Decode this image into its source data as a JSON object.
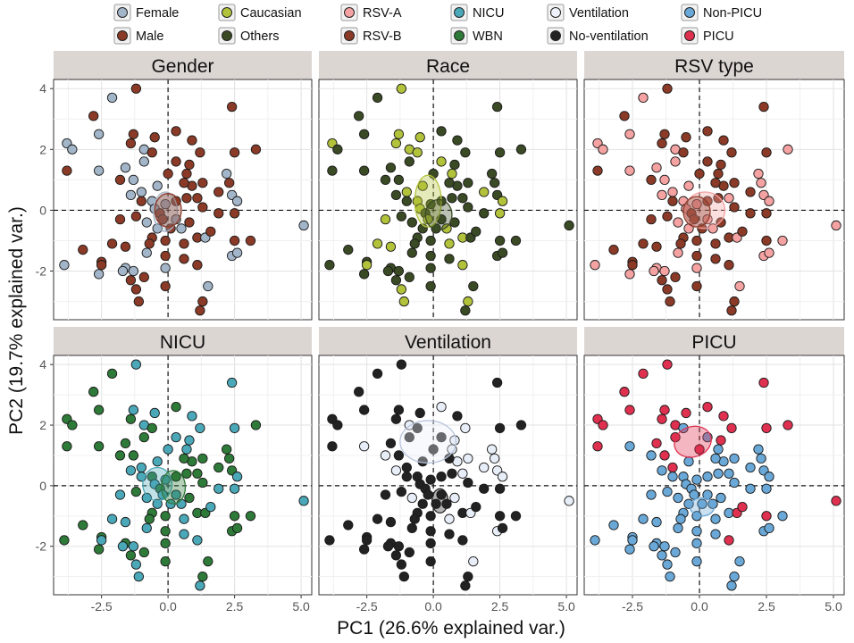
{
  "chart_data": {
    "type": "scatter",
    "xlabel": "PC1 (26.6% explained var.)",
    "ylabel": "PC2 (19.7% explained var.)",
    "xlim": [
      -4.3,
      5.4
    ],
    "ylim": [
      -3.6,
      4.3
    ],
    "x_ticks": [
      -2.5,
      0.0,
      2.5,
      5.0
    ],
    "x_tick_labels": [
      "-2.5",
      "0.0",
      "2.5",
      "5.0"
    ],
    "y_ticks": [
      -2,
      0,
      2,
      4
    ],
    "y_tick_labels": [
      "-2",
      "0",
      "2",
      "4"
    ],
    "grid": true,
    "reference_lines": {
      "x": 0,
      "y": 0,
      "style": "dashed"
    },
    "legend_position": "top",
    "legend": [
      {
        "label": "Female",
        "color": "#a3b5c8"
      },
      {
        "label": "Male",
        "color": "#8a3a26"
      },
      {
        "label": "Caucasian",
        "color": "#b2c23a"
      },
      {
        "label": "Others",
        "color": "#3a4a24"
      },
      {
        "label": "RSV-A",
        "color": "#f4a2a2"
      },
      {
        "label": "RSV-B",
        "color": "#8a3a26"
      },
      {
        "label": "NICU",
        "color": "#4aa8b8"
      },
      {
        "label": "WBN",
        "color": "#2e7a38"
      },
      {
        "label": "Ventilation",
        "color": "#eef2fa"
      },
      {
        "label": "No-ventilation",
        "color": "#222222"
      },
      {
        "label": "Non-PICU",
        "color": "#6aa8d8"
      },
      {
        "label": "PICU",
        "color": "#e03050"
      }
    ],
    "panels": [
      {
        "title": "Gender",
        "groups": [
          {
            "name": "Female",
            "color": "#a3b5c8",
            "ellipse": {
              "cx": -0.1,
              "cy": -0.05,
              "rx": 0.45,
              "ry": 0.65,
              "angle": 0
            }
          },
          {
            "name": "Male",
            "color": "#8a3a26",
            "ellipse": {
              "cx": 0.0,
              "cy": 0.0,
              "rx": 0.5,
              "ry": 0.55,
              "angle": 0
            }
          }
        ]
      },
      {
        "title": "Race",
        "groups": [
          {
            "name": "Caucasian",
            "color": "#b2c23a",
            "ellipse": {
              "cx": -0.2,
              "cy": 0.3,
              "rx": 0.5,
              "ry": 0.85,
              "angle": 0
            }
          },
          {
            "name": "Others",
            "color": "#3a4a24",
            "ellipse": {
              "cx": 0.2,
              "cy": -0.15,
              "rx": 0.5,
              "ry": 0.5,
              "angle": 0
            }
          }
        ]
      },
      {
        "title": "RSV type",
        "groups": [
          {
            "name": "RSV-A",
            "color": "#f4a2a2",
            "ellipse": {
              "cx": 0.2,
              "cy": 0.0,
              "rx": 0.75,
              "ry": 0.6,
              "angle": 0
            }
          },
          {
            "name": "RSV-B",
            "color": "#8a3a26",
            "ellipse": {
              "cx": -0.1,
              "cy": -0.05,
              "rx": 0.5,
              "ry": 0.5,
              "angle": 0
            }
          }
        ]
      },
      {
        "title": "NICU",
        "groups": [
          {
            "name": "NICU",
            "color": "#4aa8b8",
            "ellipse": {
              "cx": -0.4,
              "cy": 0.05,
              "rx": 0.55,
              "ry": 0.55,
              "angle": 0
            }
          },
          {
            "name": "WBN",
            "color": "#2e7a38",
            "ellipse": {
              "cx": 0.2,
              "cy": -0.05,
              "rx": 0.45,
              "ry": 0.55,
              "angle": 0
            }
          }
        ]
      },
      {
        "title": "Ventilation",
        "groups": [
          {
            "name": "Ventilation",
            "color": "#e8eef8",
            "ellipse": {
              "cx": -0.2,
              "cy": 1.45,
              "rx": 1.05,
              "ry": 0.7,
              "angle": 0
            }
          },
          {
            "name": "No-ventilation",
            "color": "#222222",
            "ellipse": {
              "cx": 0.25,
              "cy": -0.5,
              "rx": 0.3,
              "ry": 0.4,
              "angle": 0
            }
          }
        ]
      },
      {
        "title": "PICU",
        "groups": [
          {
            "name": "PICU",
            "color": "#e03050",
            "ellipse": {
              "cx": -0.25,
              "cy": 1.45,
              "rx": 0.7,
              "ry": 0.5,
              "angle": -18
            }
          },
          {
            "name": "Non-PICU",
            "color": "#6aa8d8",
            "ellipse": {
              "cx": 0.1,
              "cy": -0.7,
              "rx": 0.45,
              "ry": 0.3,
              "angle": 0
            }
          }
        ]
      }
    ],
    "points": [
      [
        -1.2,
        4.0,
        1,
        0,
        1,
        0,
        1,
        1
      ],
      [
        -2.1,
        3.7,
        0,
        1,
        0,
        1,
        1,
        1
      ],
      [
        -2.8,
        3.1,
        1,
        1,
        1,
        1,
        1,
        1
      ],
      [
        -2.6,
        2.5,
        0,
        1,
        0,
        1,
        1,
        1
      ],
      [
        -1.3,
        2.5,
        1,
        0,
        1,
        0,
        1,
        1
      ],
      [
        -1.4,
        2.2,
        1,
        0,
        1,
        1,
        1,
        1
      ],
      [
        -0.5,
        2.4,
        1,
        0,
        1,
        0,
        1,
        1
      ],
      [
        -3.8,
        2.2,
        0,
        0,
        0,
        1,
        1,
        1
      ],
      [
        -3.6,
        2.0,
        0,
        1,
        0,
        1,
        1,
        1
      ],
      [
        -3.8,
        1.3,
        1,
        1,
        1,
        1,
        1,
        1
      ],
      [
        -2.6,
        1.3,
        0,
        1,
        0,
        1,
        0,
        0
      ],
      [
        0.3,
        2.6,
        1,
        1,
        1,
        1,
        0,
        1
      ],
      [
        0.9,
        2.3,
        1,
        1,
        1,
        0,
        1,
        1
      ],
      [
        2.4,
        3.4,
        1,
        1,
        1,
        0,
        1,
        1
      ],
      [
        2.5,
        1.9,
        1,
        1,
        1,
        0,
        1,
        1
      ],
      [
        3.3,
        2.0,
        1,
        1,
        0,
        1,
        1,
        1
      ],
      [
        -0.9,
        2.0,
        0,
        0,
        0,
        0,
        0,
        1
      ],
      [
        -0.6,
        1.9,
        1,
        0,
        1,
        1,
        1,
        0
      ],
      [
        -0.9,
        1.6,
        0,
        1,
        0,
        1,
        1,
        1
      ],
      [
        0.0,
        1.2,
        1,
        1,
        1,
        0,
        1,
        1
      ],
      [
        0.3,
        1.6,
        1,
        0,
        1,
        0,
        1,
        0
      ],
      [
        0.8,
        1.5,
        1,
        1,
        1,
        0,
        0,
        1
      ],
      [
        0.7,
        1.2,
        1,
        0,
        1,
        0,
        0,
        0
      ],
      [
        1.2,
        1.9,
        1,
        1,
        1,
        0,
        0,
        1
      ],
      [
        -1.6,
        1.4,
        0,
        1,
        0,
        1,
        1,
        1
      ],
      [
        -1.8,
        1.0,
        1,
        1,
        1,
        1,
        0,
        0
      ],
      [
        -1.3,
        1.0,
        0,
        1,
        0,
        1,
        1,
        1
      ],
      [
        -1.0,
        0.6,
        0,
        0,
        0,
        0,
        1,
        1
      ],
      [
        -0.4,
        0.8,
        0,
        0,
        0,
        0,
        1,
        0
      ],
      [
        -1.0,
        0.3,
        1,
        1,
        1,
        0,
        1,
        0
      ],
      [
        -0.6,
        0.3,
        0,
        0,
        0,
        1,
        1,
        0
      ],
      [
        -0.5,
        0.05,
        0,
        0,
        0,
        0,
        1,
        0
      ],
      [
        -0.3,
        -0.1,
        1,
        1,
        1,
        1,
        1,
        0
      ],
      [
        -0.1,
        0.2,
        0,
        1,
        0,
        0,
        1,
        0
      ],
      [
        0.3,
        0.3,
        1,
        1,
        1,
        1,
        1,
        0
      ],
      [
        0.7,
        0.4,
        1,
        1,
        1,
        1,
        1,
        0
      ],
      [
        0.9,
        0.8,
        1,
        1,
        1,
        1,
        0,
        0
      ],
      [
        0.6,
        0.9,
        1,
        1,
        1,
        1,
        1,
        0
      ],
      [
        1.3,
        0.9,
        1,
        1,
        1,
        1,
        0,
        0
      ],
      [
        1.1,
        0.4,
        1,
        1,
        0,
        1,
        0,
        0
      ],
      [
        1.3,
        0.1,
        1,
        1,
        1,
        1,
        1,
        0
      ],
      [
        2.2,
        1.2,
        0,
        1,
        0,
        1,
        0,
        0
      ],
      [
        2.3,
        0.9,
        1,
        1,
        0,
        1,
        0,
        0
      ],
      [
        2.4,
        0.5,
        0,
        1,
        0,
        1,
        0,
        0
      ],
      [
        2.6,
        0.3,
        0,
        0,
        0,
        0,
        0,
        0
      ],
      [
        1.9,
        0.6,
        1,
        0,
        1,
        1,
        0,
        0
      ],
      [
        1.9,
        -0.1,
        1,
        1,
        1,
        0,
        1,
        0
      ],
      [
        -1.4,
        0.5,
        0,
        1,
        0,
        0,
        0,
        0
      ],
      [
        -1.8,
        -0.3,
        1,
        0,
        1,
        0,
        1,
        0
      ],
      [
        -1.2,
        -0.2,
        1,
        1,
        1,
        1,
        1,
        0
      ],
      [
        -0.8,
        -0.4,
        0,
        1,
        0,
        0,
        0,
        0
      ],
      [
        -0.4,
        -0.6,
        0,
        1,
        0,
        0,
        1,
        0
      ],
      [
        -0.2,
        -0.3,
        1,
        0,
        1,
        0,
        1,
        0
      ],
      [
        0.1,
        -0.6,
        1,
        1,
        1,
        0,
        1,
        0
      ],
      [
        0.3,
        -0.3,
        0,
        1,
        0,
        0,
        1,
        0
      ],
      [
        0.5,
        -0.6,
        0,
        0,
        0,
        0,
        1,
        0
      ],
      [
        0.8,
        -0.4,
        1,
        1,
        1,
        1,
        0,
        0
      ],
      [
        1.1,
        -0.9,
        1,
        0,
        1,
        1,
        1,
        0
      ],
      [
        1.4,
        -0.9,
        0,
        1,
        0,
        1,
        0,
        1
      ],
      [
        1.6,
        -0.7,
        1,
        1,
        1,
        0,
        1,
        1
      ],
      [
        0.6,
        -1.1,
        1,
        0,
        1,
        0,
        0,
        0
      ],
      [
        -0.1,
        -1.0,
        1,
        1,
        1,
        1,
        1,
        0
      ],
      [
        -0.6,
        -0.9,
        1,
        1,
        1,
        1,
        1,
        0
      ],
      [
        -1.6,
        -1.2,
        1,
        0,
        1,
        0,
        1,
        0
      ],
      [
        -2.1,
        -1.1,
        1,
        0,
        1,
        0,
        1,
        0
      ],
      [
        -2.5,
        -1.7,
        1,
        1,
        1,
        1,
        1,
        0
      ],
      [
        -2.5,
        -1.8,
        1,
        0,
        1,
        0,
        1,
        0
      ],
      [
        -2.6,
        -2.1,
        0,
        1,
        0,
        1,
        1,
        0
      ],
      [
        -3.2,
        -1.3,
        1,
        1,
        1,
        1,
        1,
        0
      ],
      [
        -3.9,
        -1.8,
        0,
        1,
        0,
        1,
        1,
        0
      ],
      [
        -1.6,
        -1.9,
        0,
        1,
        0,
        1,
        1,
        0
      ],
      [
        -1.7,
        -2.0,
        0,
        1,
        0,
        0,
        1,
        0
      ],
      [
        -1.3,
        -2.0,
        0,
        1,
        0,
        0,
        1,
        0
      ],
      [
        -1.4,
        -2.3,
        1,
        1,
        1,
        1,
        1,
        0
      ],
      [
        -1.2,
        -2.6,
        1,
        0,
        1,
        0,
        1,
        0
      ],
      [
        -1.1,
        -3.0,
        1,
        0,
        1,
        0,
        1,
        0
      ],
      [
        -0.9,
        -2.2,
        1,
        1,
        1,
        1,
        1,
        0
      ],
      [
        -0.1,
        -1.5,
        1,
        1,
        1,
        1,
        1,
        0
      ],
      [
        -0.1,
        -1.9,
        0,
        1,
        0,
        1,
        1,
        0
      ],
      [
        -0.1,
        -2.5,
        1,
        1,
        1,
        1,
        1,
        0
      ],
      [
        -0.8,
        -1.4,
        0,
        1,
        0,
        0,
        1,
        0
      ],
      [
        -0.7,
        -1.1,
        1,
        1,
        1,
        1,
        1,
        0
      ],
      [
        0.6,
        -1.6,
        1,
        1,
        1,
        0,
        1,
        0
      ],
      [
        1.1,
        -1.8,
        1,
        0,
        1,
        0,
        1,
        1
      ],
      [
        1.5,
        -2.5,
        0,
        1,
        0,
        1,
        0,
        0
      ],
      [
        1.3,
        -3.0,
        1,
        0,
        1,
        1,
        1,
        0
      ],
      [
        1.2,
        -3.3,
        1,
        1,
        1,
        0,
        1,
        0
      ],
      [
        2.4,
        -1.5,
        0,
        1,
        0,
        1,
        0,
        0
      ],
      [
        2.6,
        -1.4,
        0,
        1,
        0,
        1,
        1,
        0
      ],
      [
        2.5,
        -1.0,
        1,
        1,
        1,
        1,
        1,
        1
      ],
      [
        3.1,
        -1.0,
        1,
        1,
        0,
        1,
        1,
        0
      ],
      [
        2.5,
        -0.1,
        1,
        0,
        1,
        0,
        1,
        0
      ],
      [
        5.1,
        -0.5,
        0,
        1,
        0,
        0,
        0,
        1
      ]
    ],
    "point_fields": [
      "PC1",
      "PC2",
      "Gender (1=Male, 0=Female)",
      "Race (1=Others, 0=Caucasian)",
      "RSV type (1=RSV-B, 0=RSV-A)",
      "NICU (1=WBN, 0=NICU)",
      "Ventilation (1=No-ventilation, 0=Ventilation)",
      "PICU (1=PICU, 0=Non-PICU)"
    ]
  }
}
